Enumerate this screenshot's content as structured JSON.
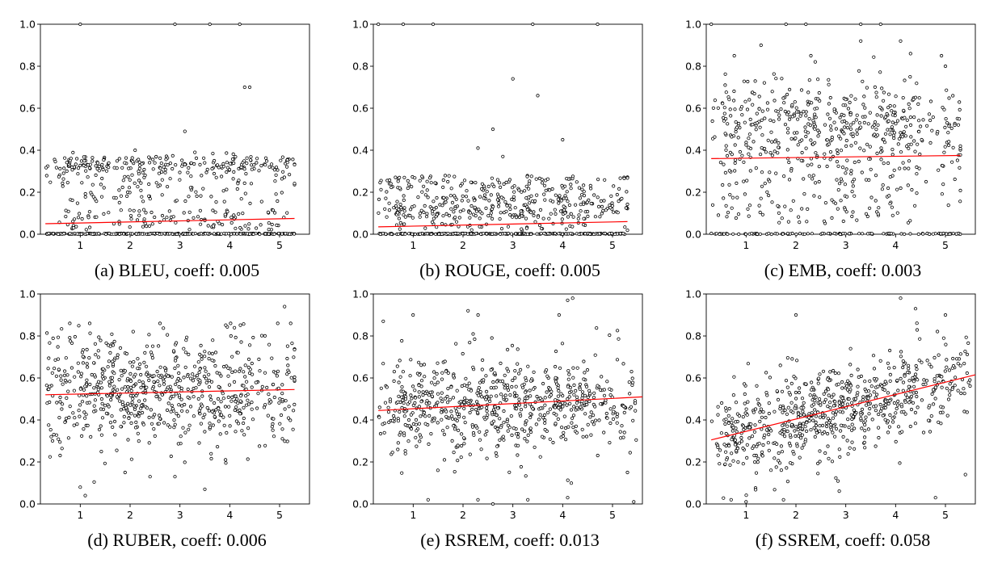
{
  "figure": {
    "captions": [
      "(a) BLEU, coeff: 0.005",
      "(b) ROUGE, coeff: 0.005",
      "(c) EMB, coeff: 0.003",
      "(d) RUBER, coeff: 0.006",
      "(e) RSREM, coeff: 0.013",
      "(f) SSREM, coeff: 0.058"
    ]
  },
  "chart_data": [
    {
      "type": "scatter",
      "caption": "(a) BLEU, coeff: 0.005",
      "xticks": [
        1,
        2,
        3,
        4,
        5
      ],
      "yticks": [
        "0.0",
        "0.2",
        "0.4",
        "0.6",
        "0.8",
        "1.0"
      ],
      "xlim": [
        0.2,
        5.6
      ],
      "ylim": [
        0.0,
        1.0
      ],
      "point_color": "#000000",
      "trend_color": "#ff0000",
      "trend_line": {
        "x": [
          0.3,
          5.3
        ],
        "y": [
          0.05,
          0.075
        ]
      },
      "cluster": {
        "mode": "bleu",
        "count": 420,
        "x_range": [
          0.3,
          5.3
        ],
        "zero_count": 260
      },
      "points": [
        [
          4.3,
          0.7
        ],
        [
          4.4,
          0.7
        ],
        [
          3.1,
          0.49
        ],
        [
          1.0,
          1.0
        ],
        [
          2.9,
          1.0
        ],
        [
          3.6,
          1.0
        ],
        [
          4.2,
          1.0
        ],
        [
          3.3,
          0.39
        ],
        [
          2.1,
          0.4
        ]
      ]
    },
    {
      "type": "scatter",
      "caption": "(b) ROUGE, coeff: 0.005",
      "xticks": [
        1,
        2,
        3,
        4,
        5
      ],
      "yticks": [
        "0.0",
        "0.2",
        "0.4",
        "0.6",
        "0.8",
        "1.0"
      ],
      "xlim": [
        0.2,
        5.6
      ],
      "ylim": [
        0.0,
        1.0
      ],
      "point_color": "#000000",
      "trend_color": "#ff0000",
      "trend_line": {
        "x": [
          0.3,
          5.3
        ],
        "y": [
          0.035,
          0.06
        ]
      },
      "cluster": {
        "mode": "rouge",
        "count": 430,
        "x_range": [
          0.3,
          5.3
        ],
        "zero_count": 260
      },
      "points": [
        [
          3.0,
          0.74
        ],
        [
          3.5,
          0.66
        ],
        [
          2.6,
          0.5
        ],
        [
          4.0,
          0.45
        ],
        [
          2.3,
          0.41
        ],
        [
          2.8,
          0.37
        ],
        [
          0.3,
          1.0
        ],
        [
          0.8,
          1.0
        ],
        [
          1.4,
          1.0
        ],
        [
          3.4,
          1.0
        ],
        [
          4.7,
          1.0
        ]
      ]
    },
    {
      "type": "scatter",
      "caption": "(c) EMB, coeff: 0.003",
      "xticks": [
        1,
        2,
        3,
        4,
        5
      ],
      "yticks": [
        "0.0",
        "0.2",
        "0.4",
        "0.6",
        "0.8",
        "1.0"
      ],
      "xlim": [
        0.2,
        5.6
      ],
      "ylim": [
        0.0,
        1.0
      ],
      "point_color": "#000000",
      "trend_color": "#ff0000",
      "trend_line": {
        "x": [
          0.3,
          5.3
        ],
        "y": [
          0.36,
          0.375
        ]
      },
      "cluster": {
        "mode": "emb",
        "count": 620,
        "x_range": [
          0.3,
          5.3
        ],
        "zero_count": 110
      },
      "points": [
        [
          3.3,
          0.92
        ],
        [
          4.1,
          0.92
        ],
        [
          1.3,
          0.9
        ],
        [
          2.3,
          0.85
        ],
        [
          4.3,
          0.86
        ],
        [
          0.3,
          1.0
        ],
        [
          1.8,
          1.0
        ],
        [
          2.2,
          1.0
        ],
        [
          3.3,
          1.0
        ],
        [
          3.7,
          1.0
        ],
        [
          5.3,
          0.42
        ],
        [
          5.0,
          0.8
        ]
      ]
    },
    {
      "type": "scatter",
      "caption": "(d) RUBER, coeff: 0.006",
      "xticks": [
        1,
        2,
        3,
        4,
        5
      ],
      "yticks": [
        "0.0",
        "0.2",
        "0.4",
        "0.6",
        "0.8",
        "1.0"
      ],
      "xlim": [
        0.2,
        5.6
      ],
      "ylim": [
        0.0,
        1.0
      ],
      "point_color": "#000000",
      "trend_color": "#ff0000",
      "trend_line": {
        "x": [
          0.3,
          5.3
        ],
        "y": [
          0.52,
          0.545
        ]
      },
      "cluster": {
        "mode": "ruber",
        "count": 700,
        "x_range": [
          0.3,
          5.3
        ],
        "zero_count": 0
      },
      "points": [
        [
          5.1,
          0.94
        ],
        [
          1.1,
          0.04
        ],
        [
          1.0,
          0.08
        ],
        [
          3.5,
          0.07
        ],
        [
          2.4,
          0.13
        ],
        [
          1.9,
          0.15
        ],
        [
          2.9,
          0.13
        ]
      ]
    },
    {
      "type": "scatter",
      "caption": "(e) RSREM, coeff: 0.013",
      "xticks": [
        1,
        2,
        3,
        4,
        5
      ],
      "yticks": [
        "0.0",
        "0.2",
        "0.4",
        "0.6",
        "0.8",
        "1.0"
      ],
      "xlim": [
        0.2,
        5.6
      ],
      "ylim": [
        0.0,
        1.0
      ],
      "point_color": "#000000",
      "trend_color": "#ff0000",
      "trend_line": {
        "x": [
          0.3,
          5.6
        ],
        "y": [
          0.445,
          0.51
        ]
      },
      "cluster": {
        "mode": "rsrem",
        "count": 700,
        "x_range": [
          0.3,
          5.5
        ],
        "zero_count": 0
      },
      "points": [
        [
          4.1,
          0.97
        ],
        [
          4.2,
          0.98
        ],
        [
          0.4,
          0.87
        ],
        [
          2.1,
          0.92
        ],
        [
          1.3,
          0.02
        ],
        [
          2.3,
          0.02
        ],
        [
          2.6,
          0.0
        ],
        [
          3.3,
          0.02
        ],
        [
          4.1,
          0.03
        ],
        [
          5.3,
          0.15
        ]
      ]
    },
    {
      "type": "scatter",
      "caption": "(f) SSREM, coeff: 0.058",
      "xticks": [
        1,
        2,
        3,
        4,
        5
      ],
      "yticks": [
        "0.0",
        "0.2",
        "0.4",
        "0.6",
        "0.8",
        "1.0"
      ],
      "xlim": [
        0.2,
        5.6
      ],
      "ylim": [
        0.0,
        1.0
      ],
      "point_color": "#000000",
      "trend_color": "#ff0000",
      "trend_line": {
        "x": [
          0.3,
          5.6
        ],
        "y": [
          0.305,
          0.615
        ]
      },
      "cluster": {
        "mode": "ssrem",
        "count": 700,
        "x_range": [
          0.3,
          5.5
        ],
        "zero_count": 0
      },
      "points": [
        [
          4.1,
          0.98
        ],
        [
          4.4,
          0.93
        ],
        [
          2.0,
          0.9
        ],
        [
          5.0,
          0.9
        ],
        [
          0.7,
          0.02
        ],
        [
          1.0,
          0.01
        ],
        [
          4.8,
          0.03
        ],
        [
          5.4,
          0.14
        ]
      ]
    }
  ]
}
